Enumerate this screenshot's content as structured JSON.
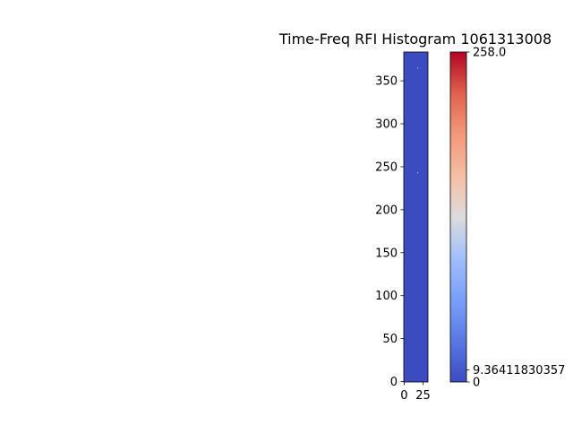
{
  "chart_data": {
    "type": "heatmap",
    "title": "Time-Freq RFI Histogram 1061313008",
    "xlabel": "",
    "ylabel": "",
    "x_ticks": [
      0,
      25
    ],
    "y_ticks": [
      0,
      50,
      100,
      150,
      200,
      250,
      300,
      350
    ],
    "x_range": [
      -0.5,
      31.5
    ],
    "y_range": [
      383.5,
      -0.5
    ],
    "colormap": "coolwarm",
    "background_value": 0,
    "hot_pixels": [
      {
        "x": 18,
        "y": 244,
        "value": 2.0
      },
      {
        "x": 18,
        "y": 366,
        "value": 2.0
      }
    ],
    "faint_column": {
      "x": 19,
      "value": 1.0
    },
    "colorbar": {
      "min": 0,
      "max": 258.0,
      "ticks": [
        {
          "value": 0,
          "label": "0"
        },
        {
          "value": 9.36411830357,
          "label": "9.36411830357"
        },
        {
          "value": 258.0,
          "label": "258.0"
        }
      ]
    },
    "colors": {
      "low": "#3b4cc0",
      "mid": "#dddddd",
      "high": "#b40426"
    }
  }
}
